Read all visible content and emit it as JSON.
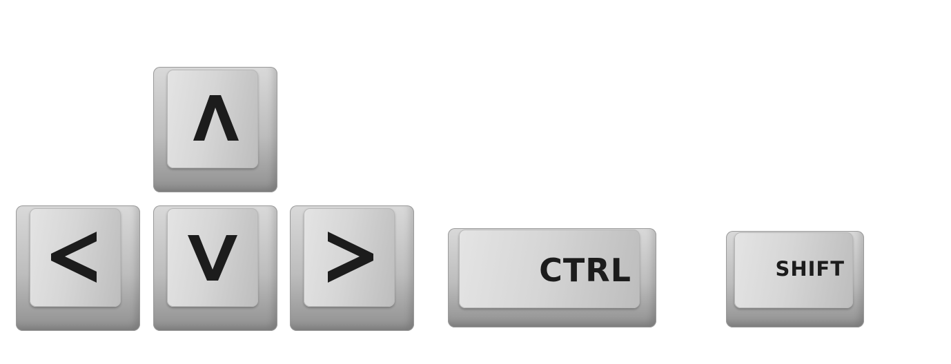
{
  "keys": {
    "up": {
      "glyph": "up-arrow-icon"
    },
    "left": {
      "glyph": "left-arrow-icon"
    },
    "down": {
      "glyph": "down-arrow-icon"
    },
    "right": {
      "glyph": "right-arrow-icon"
    },
    "ctrl": {
      "label": "CTRL"
    },
    "shift": {
      "label": "SHIFT"
    }
  },
  "colors": {
    "key_face": "#d6d6d6",
    "key_side": "#9e9e9e",
    "legend": "#1c1c1c",
    "background": "#ffffff"
  }
}
